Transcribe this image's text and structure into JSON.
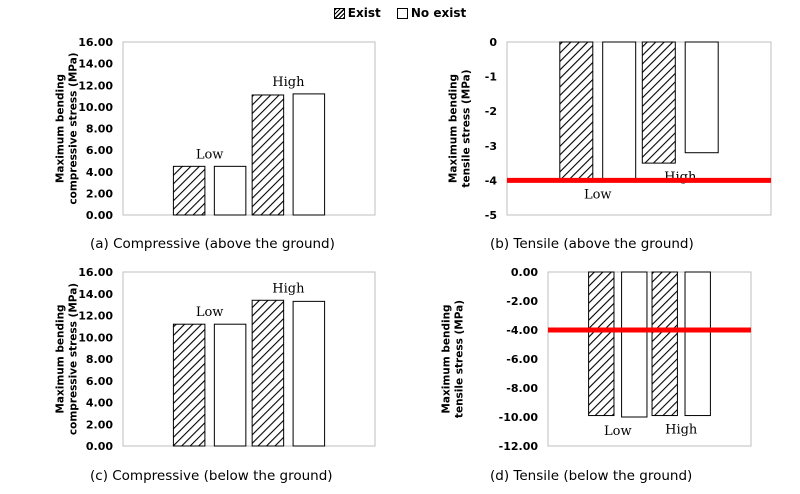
{
  "legend": {
    "items": [
      {
        "label": "Exist",
        "pattern": "hatched"
      },
      {
        "label": "No exist",
        "pattern": "plain"
      }
    ]
  },
  "colors": {
    "threshold_line": "#ff0000",
    "bar_edge": "#000000",
    "hatch": "#000000",
    "plain_fill": "#ffffff"
  },
  "chart_data": [
    {
      "id": "a",
      "type": "bar",
      "caption": "(a) Compressive (above the ground)",
      "ylabel": "Maximum bending compressive stress (MPa)",
      "categories": [
        "Low",
        "High"
      ],
      "series": [
        {
          "name": "Exist",
          "pattern": "hatched",
          "values": [
            4.5,
            11.1
          ]
        },
        {
          "name": "No exist",
          "pattern": "plain",
          "values": [
            4.5,
            11.2
          ]
        }
      ],
      "ylim": [
        0,
        16
      ],
      "yticks": [
        0,
        2,
        4,
        6,
        8,
        10,
        12,
        14,
        16
      ],
      "ytick_labels": [
        "0.00",
        "2.00",
        "4.00",
        "6.00",
        "8.00",
        "10.00",
        "12.00",
        "14.00",
        "16.00"
      ],
      "category_label_position": "above_bars"
    },
    {
      "id": "b",
      "type": "bar",
      "caption": "(b) Tensile (above the ground)",
      "ylabel": "Maximum bending tensile stress (MPa)",
      "categories": [
        "Low",
        "High"
      ],
      "series": [
        {
          "name": "Exist",
          "pattern": "hatched",
          "values": [
            -4.0,
            -3.5
          ]
        },
        {
          "name": "No exist",
          "pattern": "plain",
          "values": [
            -4.0,
            -3.2
          ]
        }
      ],
      "ylim": [
        -5,
        0
      ],
      "yticks": [
        0,
        -1,
        -2,
        -3,
        -4,
        -5
      ],
      "ytick_labels": [
        "0",
        "-1",
        "-2",
        "-3",
        "-4",
        "-5"
      ],
      "threshold": -4,
      "category_label_position": "below_bars"
    },
    {
      "id": "c",
      "type": "bar",
      "caption": "(c) Compressive (below the ground)",
      "ylabel": "Maximum bending compressive stress (MPa)",
      "categories": [
        "Low",
        "High"
      ],
      "series": [
        {
          "name": "Exist",
          "pattern": "hatched",
          "values": [
            11.2,
            13.4
          ]
        },
        {
          "name": "No exist",
          "pattern": "plain",
          "values": [
            11.2,
            13.3
          ]
        }
      ],
      "ylim": [
        0,
        16
      ],
      "yticks": [
        0,
        2,
        4,
        6,
        8,
        10,
        12,
        14,
        16
      ],
      "ytick_labels": [
        "0.00",
        "2.00",
        "4.00",
        "6.00",
        "8.00",
        "10.00",
        "12.00",
        "14.00",
        "16.00"
      ],
      "category_label_position": "above_bars"
    },
    {
      "id": "d",
      "type": "bar",
      "caption": "(d) Tensile (below the ground)",
      "ylabel": "Maximum bending tensile stress (MPa)",
      "categories": [
        "Low",
        "High"
      ],
      "series": [
        {
          "name": "Exist",
          "pattern": "hatched",
          "values": [
            -9.9,
            -9.9
          ]
        },
        {
          "name": "No exist",
          "pattern": "plain",
          "values": [
            -10.0,
            -9.9
          ]
        }
      ],
      "ylim": [
        -12,
        0
      ],
      "yticks": [
        0,
        -2,
        -4,
        -6,
        -8,
        -10,
        -12
      ],
      "ytick_labels": [
        "0.00",
        "-2.00",
        "-4.00",
        "-6.00",
        "-8.00",
        "-10.00",
        "-12.00"
      ],
      "threshold": -4,
      "category_label_position": "below_bars"
    }
  ]
}
